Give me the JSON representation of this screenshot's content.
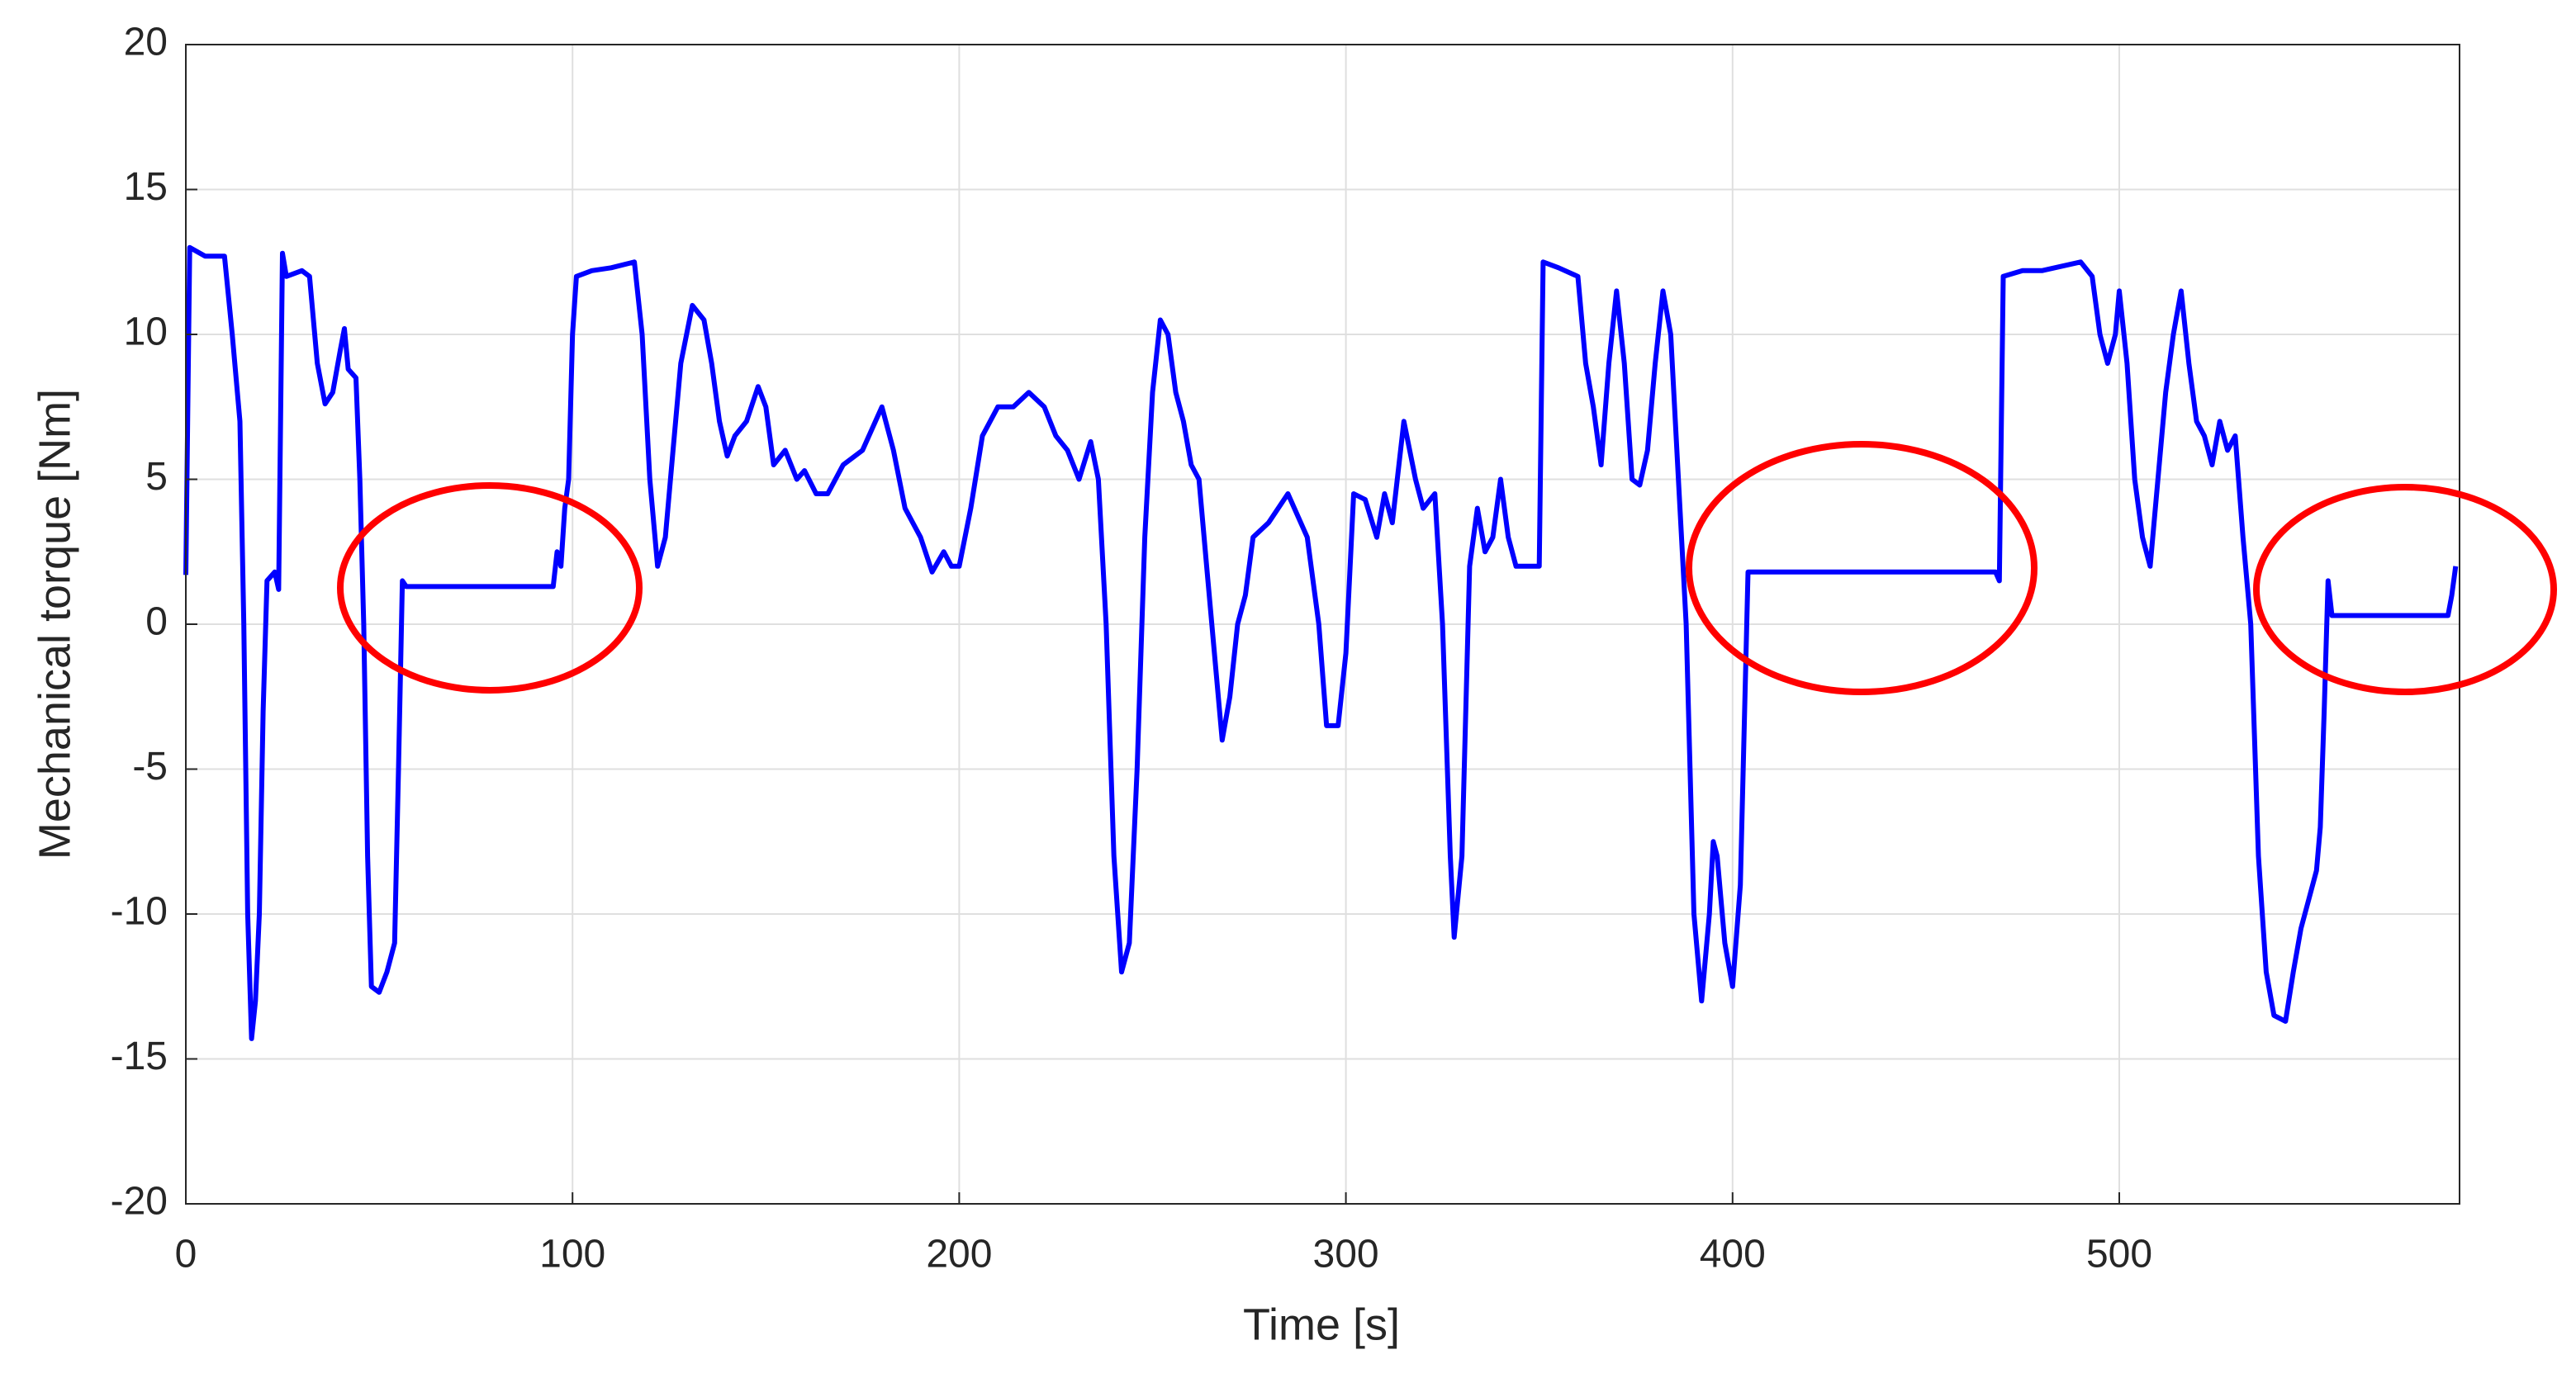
{
  "chart_data": {
    "type": "line",
    "xlabel": "Time  [s]",
    "ylabel": "Mechanical torque [Nm]",
    "color": "#0000ff",
    "grid": true,
    "xlim": [
      0,
      588
    ],
    "ylim": [
      -20,
      20
    ],
    "xticks": [
      0,
      100,
      200,
      300,
      400,
      500
    ],
    "yticks": [
      -20,
      -15,
      -10,
      -5,
      0,
      5,
      10,
      15,
      20
    ],
    "x": [
      0,
      1,
      5,
      10,
      12,
      14,
      15,
      16,
      17,
      18,
      19,
      20,
      21,
      23,
      24,
      25,
      26,
      30,
      32,
      34,
      36,
      38,
      40,
      41,
      42,
      44,
      45,
      46,
      47,
      48,
      50,
      52,
      54,
      55,
      56,
      57,
      95,
      96,
      97,
      98,
      99,
      100,
      101,
      105,
      110,
      116,
      118,
      120,
      122,
      124,
      126,
      128,
      131,
      134,
      136,
      138,
      140,
      142,
      145,
      148,
      150,
      152,
      155,
      158,
      160,
      163,
      166,
      170,
      175,
      180,
      183,
      186,
      190,
      193,
      196,
      198,
      200,
      203,
      206,
      210,
      214,
      218,
      222,
      225,
      228,
      231,
      234,
      236,
      238,
      240,
      242,
      244,
      246,
      248,
      250,
      252,
      254,
      256,
      258,
      260,
      262,
      264,
      266,
      268,
      270,
      272,
      274,
      276,
      280,
      285,
      290,
      293,
      295,
      298,
      300,
      302,
      305,
      308,
      310,
      312,
      315,
      318,
      320,
      323,
      325,
      327,
      328,
      330,
      332,
      334,
      336,
      338,
      340,
      342,
      344,
      350,
      351,
      355,
      360,
      362,
      364,
      366,
      368,
      370,
      372,
      374,
      376,
      378,
      380,
      382,
      384,
      386,
      388,
      390,
      392,
      394,
      395,
      396,
      398,
      400,
      402,
      404,
      468,
      469,
      470,
      475,
      480,
      490,
      493,
      495,
      497,
      499,
      500,
      502,
      504,
      506,
      508,
      510,
      512,
      514,
      516,
      518,
      520,
      522,
      524,
      526,
      528,
      530,
      532,
      534,
      536,
      538,
      540,
      543,
      545,
      547,
      549,
      551,
      552,
      553,
      554,
      555,
      585,
      586,
      587
    ],
    "values": [
      1.7,
      13,
      12.7,
      12.7,
      10,
      7,
      0,
      -10,
      -14.3,
      -13,
      -10,
      -3,
      1.5,
      1.8,
      1.2,
      12.8,
      12,
      12.2,
      12,
      9,
      7.6,
      8,
      9.5,
      10.2,
      8.8,
      8.5,
      5,
      0,
      -8,
      -12.5,
      -12.7,
      -12,
      -11,
      -5,
      1.5,
      1.3,
      1.3,
      2.5,
      2,
      4,
      5,
      10,
      12,
      12.2,
      12.3,
      12.5,
      10,
      5,
      2,
      3,
      6,
      9,
      11,
      10.5,
      9,
      7,
      5.8,
      6.5,
      7,
      8.2,
      7.5,
      5.5,
      6,
      5,
      5.3,
      4.5,
      4.5,
      5.5,
      6,
      7.5,
      6,
      4,
      3,
      1.8,
      2.5,
      2,
      2,
      4,
      6.5,
      7.5,
      7.5,
      8,
      7.5,
      6.5,
      6,
      5,
      6.3,
      5,
      0,
      -8,
      -12,
      -11,
      -5,
      3,
      8,
      10.5,
      10,
      8,
      7,
      5.5,
      5,
      2,
      -1,
      -4,
      -2.5,
      0,
      1,
      3,
      3.5,
      4.5,
      3,
      0,
      -3.5,
      -3.5,
      -1,
      4.5,
      4.3,
      3,
      4.5,
      3.5,
      7,
      5,
      4,
      4.5,
      0,
      -8,
      -10.8,
      -8,
      2,
      4,
      2.5,
      3,
      5,
      3,
      2,
      2,
      12.5,
      12.3,
      12,
      9,
      7.5,
      5.5,
      9,
      11.5,
      9,
      5,
      4.8,
      6,
      9,
      11.5,
      10,
      5,
      0,
      -10,
      -13,
      -10,
      -7.5,
      -8,
      -11,
      -12.5,
      -9,
      1.8,
      1.8,
      1.5,
      12,
      12.2,
      12.2,
      12.5,
      12,
      10,
      9,
      10,
      11.5,
      9,
      5,
      3,
      2,
      5,
      8,
      10,
      11.5,
      9,
      7,
      6.5,
      5.5,
      7,
      6,
      6.5,
      3,
      0,
      -8,
      -12,
      -13.5,
      -13.7,
      -12,
      -10.5,
      -9.5,
      -8.5,
      -7,
      -3,
      1.5,
      0.3,
      0.3,
      1,
      2
    ]
  }
}
